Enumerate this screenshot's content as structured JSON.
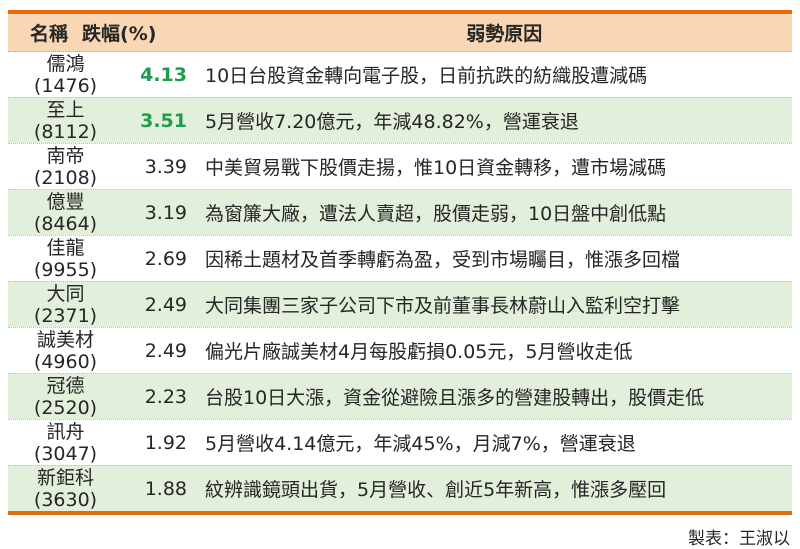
{
  "colors": {
    "accent_orange": "#E26B0A",
    "header_bg": "#FAD7B4",
    "row_green_bg": "#E2EFDA",
    "pct_green": "#1E9E4C",
    "text": "#262626",
    "row_divider": "#B5C8A8",
    "header_divider": "#DE9E62"
  },
  "chart_data": {
    "type": "table",
    "columns": [
      "名稱",
      "跌幅(%)",
      "弱勢原因"
    ],
    "rows": [
      {
        "name": "儒鴻",
        "code": "(1476)",
        "decline_pct": 4.13,
        "pct_color": "green",
        "row_shade": "white",
        "reason": "10日台股資金轉向電子股，日前抗跌的紡織股遭減碼"
      },
      {
        "name": "至上",
        "code": "(8112)",
        "decline_pct": 3.51,
        "pct_color": "green",
        "row_shade": "green",
        "reason": "5月營收7.20億元，年減48.82%，營運衰退"
      },
      {
        "name": "南帝",
        "code": "(2108)",
        "decline_pct": 3.39,
        "pct_color": "dark",
        "row_shade": "white",
        "reason": "中美貿易戰下股價走揚，惟10日資金轉移，遭市場減碼"
      },
      {
        "name": "億豐",
        "code": "(8464)",
        "decline_pct": 3.19,
        "pct_color": "dark",
        "row_shade": "green",
        "reason": "為窗簾大廠，遭法人賣超，股價走弱，10日盤中創低點"
      },
      {
        "name": "佳龍",
        "code": "(9955)",
        "decline_pct": 2.69,
        "pct_color": "dark",
        "row_shade": "white",
        "reason": "因稀土題材及首季轉虧為盈，受到市場矚目，惟漲多回檔"
      },
      {
        "name": "大同",
        "code": "(2371)",
        "decline_pct": 2.49,
        "pct_color": "dark",
        "row_shade": "green",
        "reason": "大同集團三家子公司下市及前董事長林蔚山入監利空打擊"
      },
      {
        "name": "誠美材",
        "code": "(4960)",
        "decline_pct": 2.49,
        "pct_color": "dark",
        "row_shade": "white",
        "reason": "偏光片廠誠美材4月每股虧損0.05元，5月營收走低"
      },
      {
        "name": "冠德",
        "code": "(2520)",
        "decline_pct": 2.23,
        "pct_color": "dark",
        "row_shade": "green",
        "reason": "台股10日大漲，資金從避險且漲多的營建股轉出，股價走低"
      },
      {
        "name": "訊舟",
        "code": "(3047)",
        "decline_pct": 1.92,
        "pct_color": "dark",
        "row_shade": "white",
        "reason": "5月營收4.14億元，年減45%，月減7%，營運衰退"
      },
      {
        "name": "新鉅科",
        "code": "(3630)",
        "decline_pct": 1.88,
        "pct_color": "dark",
        "row_shade": "green",
        "reason": "紋辨識鏡頭出貨，5月營收、創近5年新高，惟漲多壓回"
      }
    ],
    "credit": "製表：王淑以"
  }
}
